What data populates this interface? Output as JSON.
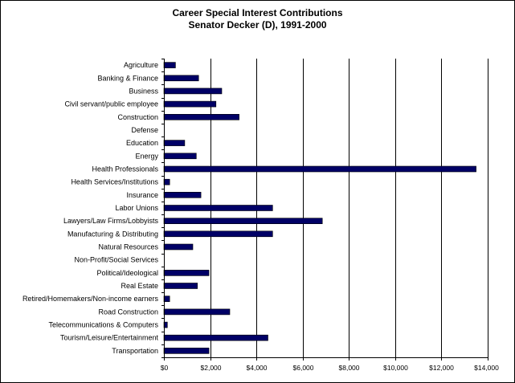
{
  "chart_data": {
    "type": "bar",
    "orientation": "horizontal",
    "title": "Career Special Interest Contributions",
    "subtitle": "Senator Decker (D), 1991-2000",
    "categories": [
      "Agriculture",
      "Banking & Finance",
      "Business",
      "Civil servant/public employee",
      "Construction",
      "Defense",
      "Education",
      "Energy",
      "Health Professionals",
      "Health Services/Institutions",
      "Insurance",
      "Labor Unions",
      "Lawyers/Law Firms/Lobbyists",
      "Manufacturing & Distributing",
      "Natural Resources",
      "Non-Profit/Social Services",
      "Political/Ideological",
      "Real Estate",
      "Retired/Homemakers/Non-income earners",
      "Road Construction",
      "Telecommunications & Computers",
      "Tourism/Leisure/Entertainment",
      "Transportation"
    ],
    "values": [
      500,
      1500,
      2500,
      2250,
      3250,
      0,
      900,
      1400,
      13500,
      250,
      1600,
      4700,
      6850,
      4700,
      1250,
      0,
      1950,
      1450,
      250,
      2850,
      150,
      4500,
      1950
    ],
    "xlim": [
      0,
      14000
    ],
    "xticks": [
      0,
      2000,
      4000,
      6000,
      8000,
      10000,
      12000,
      14000
    ],
    "xtick_labels": [
      "$0",
      "$2,000",
      "$4,000",
      "$6,000",
      "$8,000",
      "$10,000",
      "$12,000",
      "$14,000"
    ],
    "grid": "vertical",
    "legend": "none",
    "colors": {
      "bar": "#000066",
      "bar_edge": "#000000",
      "grid": "#000000",
      "axis": "#000000"
    }
  }
}
